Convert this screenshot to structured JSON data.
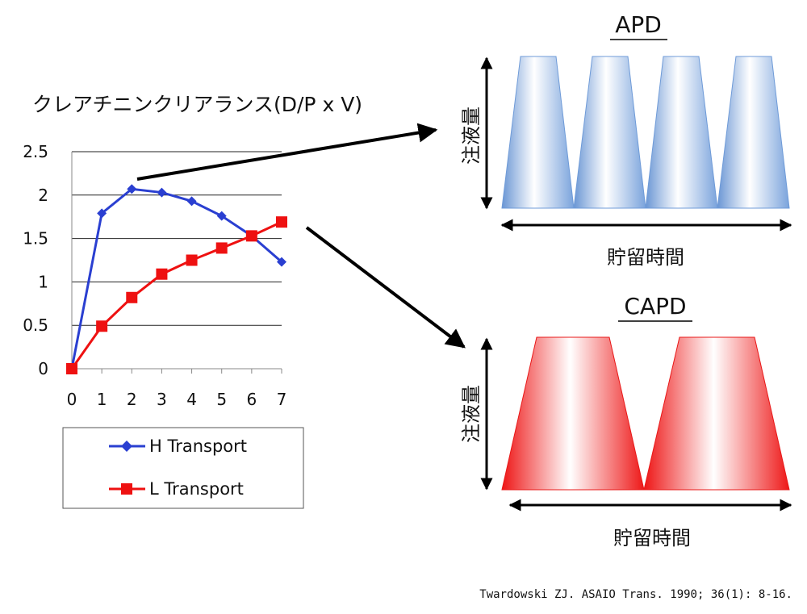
{
  "chart_data": {
    "type": "line",
    "title": "クレアチニンクリアランス(D/P x V)",
    "x": [
      0,
      1,
      2,
      3,
      4,
      5,
      6,
      7
    ],
    "y_ticks": [
      "0",
      "0.5",
      "1",
      "1.5",
      "2",
      "2.5"
    ],
    "ylim": [
      0,
      2.5
    ],
    "xlim": [
      0,
      7
    ],
    "grid": "horizontal",
    "legend_position": "bottom",
    "series": [
      {
        "name": "H Transport",
        "values": [
          0,
          1.79,
          2.07,
          2.03,
          1.93,
          1.76,
          1.53,
          1.23
        ],
        "color": "#2a3fd1",
        "marker": "diamond"
      },
      {
        "name": "L Transport",
        "values": [
          0,
          0.49,
          0.82,
          1.09,
          1.25,
          1.39,
          1.53,
          1.69
        ],
        "color": "#ee1111",
        "marker": "square"
      }
    ]
  },
  "diagrams": {
    "apd": {
      "title": "APD",
      "y_label": "注液量",
      "x_label": "貯留時間",
      "cycles": 4,
      "color": "#5b8fd6"
    },
    "capd": {
      "title": "CAPD",
      "y_label": "注液量",
      "x_label": "貯留時間",
      "cycles": 2,
      "color": "#f01c1c"
    }
  },
  "citation": "Twardowski ZJ. ASAIO Trans. 1990; 36(1): 8-16."
}
